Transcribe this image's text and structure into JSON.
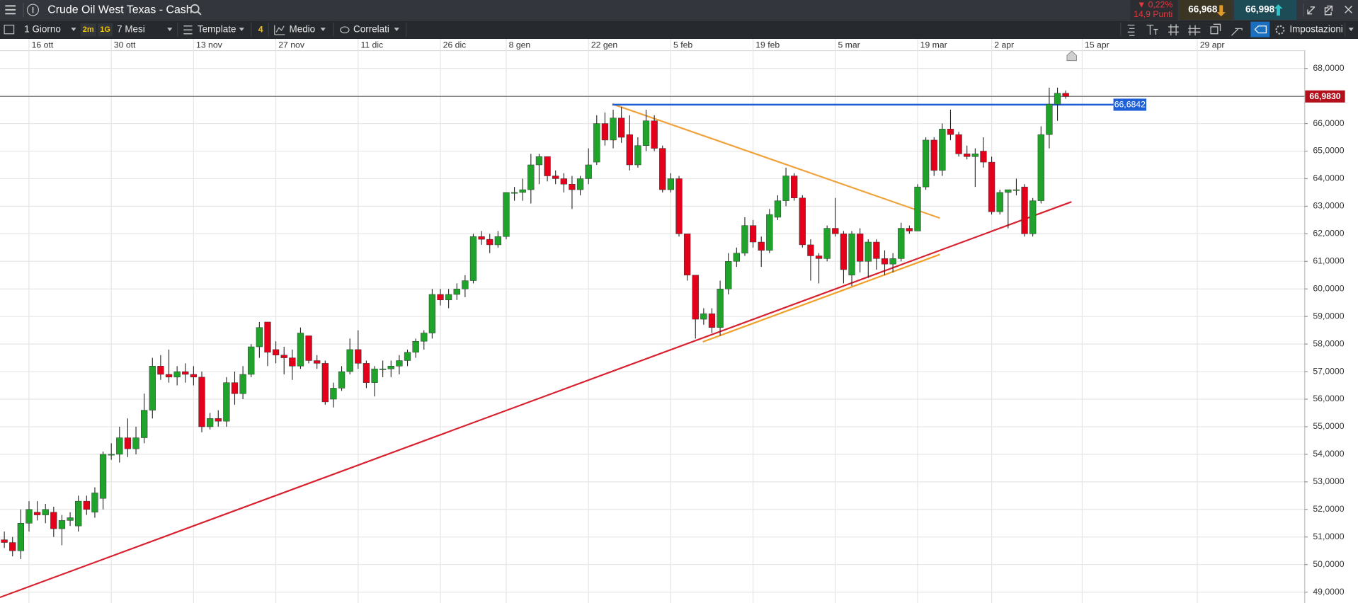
{
  "toolbar": {
    "instrument": "Crude Oil West Texas - Cash",
    "change": "▼ 0,22%",
    "points": "14,9 Punti",
    "sell": "66,968",
    "buy": "66,998",
    "interval": "1 Giorno",
    "chips": [
      "2m",
      "1G"
    ],
    "range": "7 Mesi",
    "template": "Template",
    "indicator_count": "4",
    "average": "Medio",
    "related": "Correlati",
    "settings": "Impostazioni"
  },
  "chart_data": {
    "type": "candlestick",
    "categories": [
      null,
      null,
      null,
      "16 ott",
      null,
      null,
      null,
      null,
      null,
      null,
      null,
      null,
      null,
      "30 ott",
      null,
      null,
      null,
      null,
      null,
      null,
      null,
      null,
      null,
      "13 nov",
      null,
      null,
      null,
      null,
      null,
      null,
      null,
      null,
      null,
      "27 nov",
      null,
      null,
      null,
      null,
      null,
      null,
      null,
      null,
      null,
      "11 dic",
      null,
      null,
      null,
      null,
      null,
      null,
      null,
      null,
      null,
      "26 dic",
      null,
      null,
      null,
      null,
      null,
      null,
      null,
      "8 gen",
      null,
      null,
      null,
      null,
      null,
      null,
      null,
      null,
      null,
      "22 gen",
      null,
      null,
      null,
      null,
      null,
      null,
      null,
      null,
      null,
      "5 feb",
      null,
      null,
      null,
      null,
      null,
      null,
      null,
      null,
      null,
      "19 feb",
      null,
      null,
      null,
      null,
      null,
      null,
      null,
      null,
      null,
      "5 mar",
      null,
      null,
      null,
      null,
      null,
      null,
      null,
      null,
      null,
      "19 mar",
      null,
      null,
      null,
      null,
      null,
      null,
      null,
      null,
      "2 apr",
      null,
      null,
      null,
      null,
      null,
      null,
      null,
      null,
      null,
      null,
      "15 apr",
      null,
      null,
      null,
      null,
      null,
      null,
      null,
      null,
      null,
      null,
      null,
      null,
      null,
      "29 apr",
      null,
      null,
      null,
      null,
      null,
      null,
      null,
      null,
      null,
      null,
      null,
      null
    ],
    "open": [
      50.9,
      50.8,
      50.5,
      51.5,
      51.9,
      51.8,
      51.9,
      51.3,
      51.6,
      51.4,
      52.3,
      51.9,
      52.4,
      54.0,
      54.0,
      54.6,
      54.2,
      54.6,
      55.6,
      57.2,
      56.9,
      56.8,
      57.0,
      56.9,
      56.8,
      55.0,
      55.3,
      55.2,
      56.6,
      56.2,
      56.9,
      57.9,
      58.8,
      57.8,
      57.6,
      57.5,
      57.2,
      58.3,
      57.4,
      57.3,
      56.0,
      56.4,
      57.0,
      57.8,
      57.3,
      56.6,
      57.1,
      57.1,
      57.2,
      57.4,
      57.7,
      58.1,
      58.4,
      59.8,
      59.6,
      59.8,
      60.0,
      60.3,
      61.9,
      61.8,
      61.6,
      61.9,
      63.5,
      63.5,
      63.6,
      64.5,
      64.8,
      64.1,
      64.0,
      63.8,
      63.6,
      64.0,
      64.6,
      66.0,
      65.4,
      66.2,
      65.6,
      64.5,
      65.2,
      66.1,
      65.1,
      63.6,
      64.0,
      62.0,
      60.5,
      58.9,
      59.1,
      58.6,
      60.0,
      61.0,
      61.3,
      62.3,
      61.7,
      61.4,
      62.6,
      63.2,
      64.1,
      63.3,
      61.6,
      61.2,
      61.1,
      62.2,
      62.0,
      60.5,
      62.0,
      61.0,
      61.7,
      61.1,
      60.9,
      61.1,
      62.2,
      62.1,
      63.7,
      65.4,
      64.3,
      65.8,
      65.6,
      64.9,
      64.8,
      65.0,
      64.6,
      62.8,
      63.5,
      63.6,
      63.7,
      62.0,
      63.2,
      65.6,
      66.7,
      67.1,
      null,
      null,
      null,
      null,
      null,
      null,
      null,
      null,
      null,
      null,
      null,
      null,
      null,
      null,
      null,
      null,
      null,
      null,
      null,
      null,
      null,
      null,
      null,
      null,
      null,
      null,
      null,
      null
    ],
    "high": [
      51.2,
      51.0,
      52.0,
      52.3,
      52.3,
      52.2,
      52.1,
      51.8,
      51.9,
      52.5,
      52.5,
      52.8,
      54.1,
      54.4,
      55.0,
      55.3,
      55.0,
      56.2,
      57.5,
      57.6,
      57.8,
      57.2,
      57.3,
      57.2,
      57.0,
      55.5,
      55.6,
      56.8,
      57.0,
      57.2,
      58.0,
      58.8,
      58.8,
      58.1,
      57.9,
      57.8,
      58.6,
      58.3,
      57.6,
      57.4,
      56.6,
      57.2,
      58.2,
      58.5,
      57.4,
      57.2,
      57.4,
      57.4,
      57.6,
      57.8,
      58.2,
      58.5,
      60.0,
      60.0,
      60.0,
      60.2,
      60.5,
      62.0,
      62.1,
      62.0,
      62.1,
      63.5,
      63.7,
      64.0,
      64.9,
      64.9,
      64.8,
      64.3,
      64.2,
      64.1,
      64.1,
      65.1,
      66.3,
      66.4,
      66.5,
      66.6,
      66.3,
      65.5,
      66.5,
      66.3,
      65.2,
      64.2,
      64.1,
      62.0,
      60.5,
      59.3,
      59.3,
      60.3,
      61.3,
      61.5,
      62.6,
      62.5,
      61.9,
      62.9,
      63.4,
      64.4,
      64.2,
      63.4,
      61.8,
      61.3,
      62.3,
      63.3,
      62.1,
      62.1,
      62.2,
      61.8,
      61.8,
      61.4,
      61.3,
      62.4,
      62.3,
      63.8,
      65.5,
      65.5,
      66.0,
      66.5,
      65.7,
      65.2,
      65.1,
      65.5,
      64.8,
      63.6,
      63.6,
      64.0,
      63.8,
      63.3,
      65.9,
      67.3,
      67.3,
      67.2,
      null,
      null,
      null,
      null,
      null,
      null,
      null,
      null,
      null,
      null,
      null,
      null,
      null,
      null,
      null,
      null,
      null,
      null,
      null,
      null,
      null,
      null,
      null,
      null,
      null,
      null,
      null,
      null
    ],
    "low": [
      50.6,
      50.3,
      50.2,
      51.2,
      51.6,
      51.5,
      51.0,
      50.7,
      51.4,
      51.2,
      51.8,
      51.7,
      52.0,
      53.8,
      53.7,
      53.9,
      54.0,
      54.4,
      55.3,
      56.7,
      56.6,
      56.5,
      56.6,
      56.5,
      54.8,
      54.9,
      55.0,
      55.0,
      55.8,
      56.0,
      56.8,
      57.5,
      57.2,
      57.3,
      56.9,
      56.7,
      57.1,
      57.3,
      57.1,
      55.8,
      55.7,
      56.3,
      56.9,
      57.1,
      56.4,
      56.1,
      56.8,
      56.8,
      56.9,
      57.2,
      57.5,
      57.8,
      58.2,
      59.4,
      59.3,
      59.6,
      59.7,
      60.2,
      61.6,
      61.3,
      61.5,
      61.8,
      63.2,
      63.2,
      63.1,
      63.8,
      63.9,
      63.8,
      63.5,
      62.9,
      63.4,
      63.8,
      64.5,
      65.2,
      65.1,
      65.3,
      64.3,
      64.4,
      65.0,
      65.0,
      63.5,
      63.5,
      61.9,
      60.3,
      58.2,
      58.7,
      58.4,
      58.3,
      59.8,
      60.8,
      61.2,
      61.5,
      60.8,
      61.3,
      62.5,
      63.0,
      63.2,
      61.5,
      60.3,
      60.2,
      61.0,
      61.9,
      60.2,
      60.1,
      60.6,
      60.4,
      60.7,
      60.5,
      60.6,
      61.0,
      62.0,
      62.1,
      63.6,
      64.1,
      64.1,
      65.4,
      64.8,
      64.7,
      63.7,
      64.4,
      62.7,
      62.7,
      62.2,
      63.4,
      61.9,
      61.9,
      63.1,
      65.1,
      66.1,
      66.9,
      null,
      null,
      null,
      null,
      null,
      null,
      null,
      null,
      null,
      null,
      null,
      null,
      null,
      null,
      null,
      null,
      null,
      null,
      null,
      null,
      null,
      null,
      null,
      null,
      null,
      null,
      null,
      null
    ],
    "close": [
      50.8,
      50.5,
      51.5,
      52.0,
      51.8,
      52.0,
      51.3,
      51.6,
      51.7,
      52.3,
      52.0,
      52.6,
      54.0,
      54.0,
      54.6,
      54.2,
      54.6,
      55.6,
      57.2,
      56.9,
      56.8,
      57.0,
      56.9,
      56.8,
      55.0,
      55.3,
      55.2,
      56.6,
      56.2,
      56.9,
      57.9,
      58.6,
      57.7,
      57.6,
      57.5,
      57.2,
      58.4,
      57.4,
      57.3,
      55.9,
      56.4,
      57.0,
      57.8,
      57.3,
      56.6,
      57.1,
      57.1,
      57.2,
      57.4,
      57.7,
      58.1,
      58.4,
      59.8,
      59.6,
      59.8,
      60.0,
      60.3,
      61.9,
      61.8,
      61.6,
      61.9,
      63.5,
      63.5,
      63.6,
      64.5,
      64.8,
      64.1,
      64.0,
      63.8,
      63.6,
      64.0,
      64.5,
      66.0,
      65.4,
      66.2,
      65.5,
      64.5,
      65.2,
      66.1,
      65.1,
      63.6,
      64.0,
      62.0,
      60.5,
      58.9,
      59.1,
      58.6,
      60.0,
      61.0,
      61.3,
      62.3,
      61.7,
      61.4,
      62.7,
      63.2,
      64.1,
      63.3,
      61.6,
      61.2,
      61.1,
      62.2,
      62.0,
      60.7,
      62.0,
      61.0,
      61.7,
      61.1,
      60.9,
      61.1,
      62.2,
      62.1,
      63.7,
      65.4,
      64.3,
      65.8,
      65.6,
      64.9,
      64.8,
      64.9,
      64.6,
      62.8,
      63.5,
      63.6,
      63.6,
      62.0,
      63.2,
      65.6,
      66.7,
      67.1,
      66.98,
      null,
      null,
      null,
      null,
      null,
      null,
      null,
      null,
      null,
      null,
      null,
      null,
      null,
      null,
      null,
      null,
      null,
      null,
      null,
      null,
      null,
      null,
      null,
      null,
      null,
      null,
      null,
      null
    ],
    "up_color": "#1fa32a",
    "down_color": "#e4001b",
    "ylim": [
      48.59,
      68.66
    ],
    "yticks": [
      {
        "value": 49,
        "label": "49,0000"
      },
      {
        "value": 50,
        "label": "50,0000"
      },
      {
        "value": 51,
        "label": "51,0000"
      },
      {
        "value": 52,
        "label": "52,0000"
      },
      {
        "value": 53,
        "label": "53,0000"
      },
      {
        "value": 54,
        "label": "54,0000"
      },
      {
        "value": 55,
        "label": "55,0000"
      },
      {
        "value": 56,
        "label": "56,0000"
      },
      {
        "value": 57,
        "label": "57,0000"
      },
      {
        "value": 58,
        "label": "58,0000"
      },
      {
        "value": 59,
        "label": "59,0000"
      },
      {
        "value": 60,
        "label": "60,0000"
      },
      {
        "value": 61,
        "label": "61,0000"
      },
      {
        "value": 62,
        "label": "62,0000"
      },
      {
        "value": 63,
        "label": "63,0000"
      },
      {
        "value": 64,
        "label": "64,0000"
      },
      {
        "value": 65,
        "label": "65,0000"
      },
      {
        "value": 66,
        "label": "66,0000"
      },
      {
        "value": 67,
        "label": "67,0000"
      },
      {
        "value": 68,
        "label": "68,0000"
      }
    ],
    "grid": true,
    "levels": [
      {
        "value": 66.983,
        "label": "66,9830",
        "color": "#b3101c",
        "line_color": "#6e6e6e",
        "from": -1,
        "to": 158
      },
      {
        "value": 66.6842,
        "label": "66,6842",
        "color": "#1f5fd6",
        "line_color": "#1f5fd6",
        "from": 73.9,
        "to": 134.8
      }
    ],
    "trendlines": [
      {
        "color": "#d8202f",
        "x": [
          -0.53,
          129.7
        ],
        "y": [
          48.81,
          63.16
        ]
      },
      {
        "color": "#f0a23c",
        "x": [
          73.9,
          113.7
        ],
        "y": [
          66.71,
          62.57
        ]
      },
      {
        "color": "#f0a02a",
        "x": [
          84.9,
          113.7
        ],
        "y": [
          58.08,
          61.25
        ]
      }
    ]
  }
}
